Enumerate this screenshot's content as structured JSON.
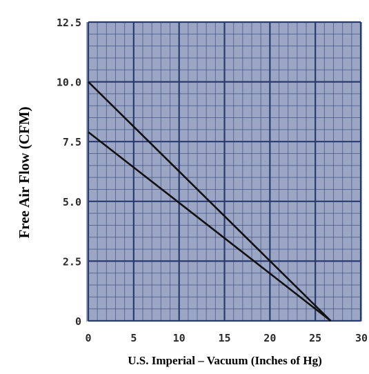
{
  "chart_data": {
    "type": "line",
    "title": "",
    "xlabel": "U.S. Imperial – Vacuum (Inches of Hg)",
    "ylabel": "Free Air Flow (CFM)",
    "xlim": [
      0,
      30
    ],
    "ylim": [
      0,
      12.5
    ],
    "x_ticks": [
      "0",
      "5",
      "10",
      "15",
      "20",
      "25",
      "30"
    ],
    "y_ticks": [
      "0",
      "2.5",
      "5.0",
      "7.5",
      "10.0",
      "12.5"
    ],
    "grid": true,
    "legend": "none",
    "colors": {
      "plot_bg": "#9aa6c4",
      "grid": "#2a3a6e",
      "line": "#111111"
    },
    "series": [
      {
        "x": [
          0,
          26.7
        ],
        "y": [
          10.0,
          0
        ]
      },
      {
        "x": [
          0,
          26.7
        ],
        "y": [
          7.9,
          0
        ]
      }
    ]
  }
}
